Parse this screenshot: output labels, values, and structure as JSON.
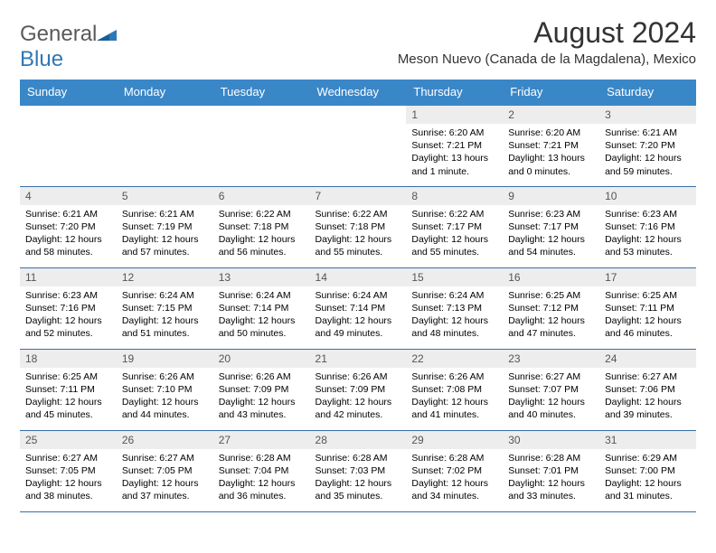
{
  "logo": {
    "general": "General",
    "blue": "Blue"
  },
  "title": "August 2024",
  "subtitle": "Meson Nuevo (Canada de la Magdalena), Mexico",
  "colors": {
    "header_bg": "#3a87c8",
    "header_fg": "#ffffff",
    "daynum_bg": "#ededed",
    "daynum_fg": "#555555",
    "border": "#3a6ea5",
    "logo_general": "#5a5a5a",
    "logo_blue": "#2f78b7",
    "page_bg": "#ffffff"
  },
  "day_names": [
    "Sunday",
    "Monday",
    "Tuesday",
    "Wednesday",
    "Thursday",
    "Friday",
    "Saturday"
  ],
  "weeks": [
    [
      {
        "n": "",
        "sr": "",
        "ss": "",
        "dl": ""
      },
      {
        "n": "",
        "sr": "",
        "ss": "",
        "dl": ""
      },
      {
        "n": "",
        "sr": "",
        "ss": "",
        "dl": ""
      },
      {
        "n": "",
        "sr": "",
        "ss": "",
        "dl": ""
      },
      {
        "n": "1",
        "sr": "Sunrise: 6:20 AM",
        "ss": "Sunset: 7:21 PM",
        "dl": "Daylight: 13 hours and 1 minute."
      },
      {
        "n": "2",
        "sr": "Sunrise: 6:20 AM",
        "ss": "Sunset: 7:21 PM",
        "dl": "Daylight: 13 hours and 0 minutes."
      },
      {
        "n": "3",
        "sr": "Sunrise: 6:21 AM",
        "ss": "Sunset: 7:20 PM",
        "dl": "Daylight: 12 hours and 59 minutes."
      }
    ],
    [
      {
        "n": "4",
        "sr": "Sunrise: 6:21 AM",
        "ss": "Sunset: 7:20 PM",
        "dl": "Daylight: 12 hours and 58 minutes."
      },
      {
        "n": "5",
        "sr": "Sunrise: 6:21 AM",
        "ss": "Sunset: 7:19 PM",
        "dl": "Daylight: 12 hours and 57 minutes."
      },
      {
        "n": "6",
        "sr": "Sunrise: 6:22 AM",
        "ss": "Sunset: 7:18 PM",
        "dl": "Daylight: 12 hours and 56 minutes."
      },
      {
        "n": "7",
        "sr": "Sunrise: 6:22 AM",
        "ss": "Sunset: 7:18 PM",
        "dl": "Daylight: 12 hours and 55 minutes."
      },
      {
        "n": "8",
        "sr": "Sunrise: 6:22 AM",
        "ss": "Sunset: 7:17 PM",
        "dl": "Daylight: 12 hours and 55 minutes."
      },
      {
        "n": "9",
        "sr": "Sunrise: 6:23 AM",
        "ss": "Sunset: 7:17 PM",
        "dl": "Daylight: 12 hours and 54 minutes."
      },
      {
        "n": "10",
        "sr": "Sunrise: 6:23 AM",
        "ss": "Sunset: 7:16 PM",
        "dl": "Daylight: 12 hours and 53 minutes."
      }
    ],
    [
      {
        "n": "11",
        "sr": "Sunrise: 6:23 AM",
        "ss": "Sunset: 7:16 PM",
        "dl": "Daylight: 12 hours and 52 minutes."
      },
      {
        "n": "12",
        "sr": "Sunrise: 6:24 AM",
        "ss": "Sunset: 7:15 PM",
        "dl": "Daylight: 12 hours and 51 minutes."
      },
      {
        "n": "13",
        "sr": "Sunrise: 6:24 AM",
        "ss": "Sunset: 7:14 PM",
        "dl": "Daylight: 12 hours and 50 minutes."
      },
      {
        "n": "14",
        "sr": "Sunrise: 6:24 AM",
        "ss": "Sunset: 7:14 PM",
        "dl": "Daylight: 12 hours and 49 minutes."
      },
      {
        "n": "15",
        "sr": "Sunrise: 6:24 AM",
        "ss": "Sunset: 7:13 PM",
        "dl": "Daylight: 12 hours and 48 minutes."
      },
      {
        "n": "16",
        "sr": "Sunrise: 6:25 AM",
        "ss": "Sunset: 7:12 PM",
        "dl": "Daylight: 12 hours and 47 minutes."
      },
      {
        "n": "17",
        "sr": "Sunrise: 6:25 AM",
        "ss": "Sunset: 7:11 PM",
        "dl": "Daylight: 12 hours and 46 minutes."
      }
    ],
    [
      {
        "n": "18",
        "sr": "Sunrise: 6:25 AM",
        "ss": "Sunset: 7:11 PM",
        "dl": "Daylight: 12 hours and 45 minutes."
      },
      {
        "n": "19",
        "sr": "Sunrise: 6:26 AM",
        "ss": "Sunset: 7:10 PM",
        "dl": "Daylight: 12 hours and 44 minutes."
      },
      {
        "n": "20",
        "sr": "Sunrise: 6:26 AM",
        "ss": "Sunset: 7:09 PM",
        "dl": "Daylight: 12 hours and 43 minutes."
      },
      {
        "n": "21",
        "sr": "Sunrise: 6:26 AM",
        "ss": "Sunset: 7:09 PM",
        "dl": "Daylight: 12 hours and 42 minutes."
      },
      {
        "n": "22",
        "sr": "Sunrise: 6:26 AM",
        "ss": "Sunset: 7:08 PM",
        "dl": "Daylight: 12 hours and 41 minutes."
      },
      {
        "n": "23",
        "sr": "Sunrise: 6:27 AM",
        "ss": "Sunset: 7:07 PM",
        "dl": "Daylight: 12 hours and 40 minutes."
      },
      {
        "n": "24",
        "sr": "Sunrise: 6:27 AM",
        "ss": "Sunset: 7:06 PM",
        "dl": "Daylight: 12 hours and 39 minutes."
      }
    ],
    [
      {
        "n": "25",
        "sr": "Sunrise: 6:27 AM",
        "ss": "Sunset: 7:05 PM",
        "dl": "Daylight: 12 hours and 38 minutes."
      },
      {
        "n": "26",
        "sr": "Sunrise: 6:27 AM",
        "ss": "Sunset: 7:05 PM",
        "dl": "Daylight: 12 hours and 37 minutes."
      },
      {
        "n": "27",
        "sr": "Sunrise: 6:28 AM",
        "ss": "Sunset: 7:04 PM",
        "dl": "Daylight: 12 hours and 36 minutes."
      },
      {
        "n": "28",
        "sr": "Sunrise: 6:28 AM",
        "ss": "Sunset: 7:03 PM",
        "dl": "Daylight: 12 hours and 35 minutes."
      },
      {
        "n": "29",
        "sr": "Sunrise: 6:28 AM",
        "ss": "Sunset: 7:02 PM",
        "dl": "Daylight: 12 hours and 34 minutes."
      },
      {
        "n": "30",
        "sr": "Sunrise: 6:28 AM",
        "ss": "Sunset: 7:01 PM",
        "dl": "Daylight: 12 hours and 33 minutes."
      },
      {
        "n": "31",
        "sr": "Sunrise: 6:29 AM",
        "ss": "Sunset: 7:00 PM",
        "dl": "Daylight: 12 hours and 31 minutes."
      }
    ]
  ]
}
